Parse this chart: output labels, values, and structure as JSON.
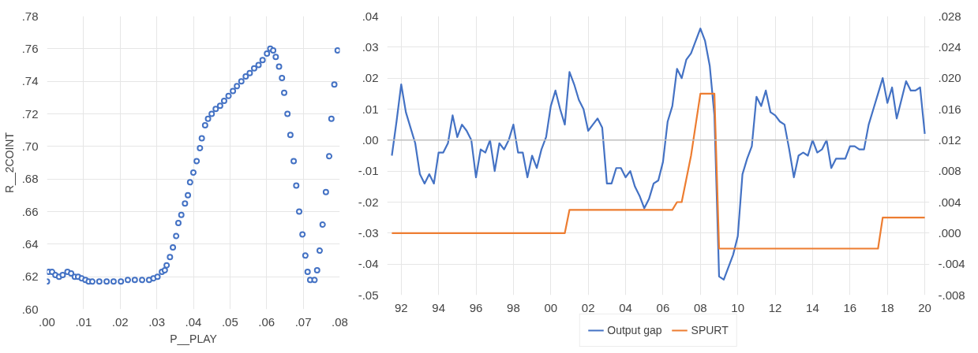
{
  "chart_data": [
    {
      "type": "scatter",
      "xlabel": "P__PLAY",
      "ylabel": "R__2COINT",
      "marker": "circle",
      "grid": true,
      "legend": false,
      "xlim": [
        0,
        0.08
      ],
      "ylim": [
        0.6,
        0.78
      ],
      "xticks": [
        {
          "value": 0,
          "label": ".00"
        },
        {
          "value": 0.01,
          "label": ".01"
        },
        {
          "value": 0.02,
          "label": ".02"
        },
        {
          "value": 0.03,
          "label": ".03"
        },
        {
          "value": 0.04,
          "label": ".04"
        },
        {
          "value": 0.05,
          "label": ".05"
        },
        {
          "value": 0.06,
          "label": ".06"
        },
        {
          "value": 0.07,
          "label": ".07"
        },
        {
          "value": 0.08,
          "label": ".08"
        }
      ],
      "yticks": [
        {
          "value": 0.6,
          "label": ".60"
        },
        {
          "value": 0.62,
          "label": ".62"
        },
        {
          "value": 0.64,
          "label": ".64"
        },
        {
          "value": 0.66,
          "label": ".66"
        },
        {
          "value": 0.68,
          "label": ".68"
        },
        {
          "value": 0.7,
          "label": ".70"
        },
        {
          "value": 0.72,
          "label": ".72"
        },
        {
          "value": 0.74,
          "label": ".74"
        },
        {
          "value": 0.76,
          "label": ".76"
        },
        {
          "value": 0.78,
          "label": ".78"
        }
      ],
      "series": [
        {
          "color": "#4472c4",
          "x": [
            0.0,
            0.0005,
            0.0014,
            0.0023,
            0.0033,
            0.0043,
            0.0056,
            0.0066,
            0.0076,
            0.0085,
            0.0095,
            0.0105,
            0.0114,
            0.0124,
            0.0143,
            0.0163,
            0.0182,
            0.0202,
            0.0221,
            0.024,
            0.026,
            0.0279,
            0.0291,
            0.0302,
            0.0314,
            0.0322,
            0.0327,
            0.0336,
            0.0344,
            0.0353,
            0.0359,
            0.0367,
            0.0377,
            0.0385,
            0.0391,
            0.04,
            0.0409,
            0.0418,
            0.0423,
            0.0432,
            0.044,
            0.045,
            0.0461,
            0.0473,
            0.0484,
            0.0496,
            0.0508,
            0.0519,
            0.0531,
            0.0543,
            0.0554,
            0.0566,
            0.0578,
            0.0589,
            0.0601,
            0.061,
            0.0618,
            0.0625,
            0.0634,
            0.0642,
            0.0648,
            0.0657,
            0.0665,
            0.0674,
            0.0681,
            0.0689,
            0.0698,
            0.0706,
            0.0712,
            0.0719,
            0.0731,
            0.0738,
            0.0745,
            0.0753,
            0.0762,
            0.0771,
            0.0777,
            0.0785,
            0.0794
          ],
          "values": [
            0.617,
            0.623,
            0.623,
            0.621,
            0.62,
            0.621,
            0.623,
            0.622,
            0.62,
            0.62,
            0.619,
            0.618,
            0.617,
            0.617,
            0.617,
            0.617,
            0.617,
            0.617,
            0.618,
            0.618,
            0.618,
            0.618,
            0.619,
            0.62,
            0.623,
            0.624,
            0.627,
            0.632,
            0.638,
            0.645,
            0.653,
            0.658,
            0.665,
            0.67,
            0.678,
            0.684,
            0.691,
            0.699,
            0.705,
            0.713,
            0.717,
            0.72,
            0.723,
            0.725,
            0.728,
            0.731,
            0.734,
            0.737,
            0.74,
            0.743,
            0.745,
            0.748,
            0.75,
            0.753,
            0.757,
            0.76,
            0.759,
            0.755,
            0.749,
            0.742,
            0.733,
            0.72,
            0.707,
            0.691,
            0.676,
            0.66,
            0.646,
            0.633,
            0.623,
            0.618,
            0.618,
            0.624,
            0.636,
            0.652,
            0.672,
            0.694,
            0.717,
            0.738,
            0.759
          ]
        }
      ]
    },
    {
      "type": "line",
      "grid": true,
      "legend": "bottom",
      "marker": "none",
      "line_style": "solid",
      "xlim": [
        1991.25,
        2020.25
      ],
      "ylim": [
        -0.05,
        0.04
      ],
      "y2lim": [
        -0.008,
        0.028
      ],
      "xticks": [
        {
          "value": 1992,
          "label": "92"
        },
        {
          "value": 1994,
          "label": "94"
        },
        {
          "value": 1996,
          "label": "96"
        },
        {
          "value": 1998,
          "label": "98"
        },
        {
          "value": 2000,
          "label": "00"
        },
        {
          "value": 2002,
          "label": "02"
        },
        {
          "value": 2004,
          "label": "04"
        },
        {
          "value": 2006,
          "label": "06"
        },
        {
          "value": 2008,
          "label": "08"
        },
        {
          "value": 2010,
          "label": "10"
        },
        {
          "value": 2012,
          "label": "12"
        },
        {
          "value": 2014,
          "label": "14"
        },
        {
          "value": 2016,
          "label": "16"
        },
        {
          "value": 2018,
          "label": "18"
        },
        {
          "value": 2020,
          "label": "20"
        }
      ],
      "yticks": [
        {
          "value": -0.05,
          "label": "-.05"
        },
        {
          "value": -0.04,
          "label": "-.04"
        },
        {
          "value": -0.03,
          "label": "-.03"
        },
        {
          "value": -0.02,
          "label": "-.02"
        },
        {
          "value": -0.01,
          "label": "-.01"
        },
        {
          "value": 0,
          "label": ".00"
        },
        {
          "value": 0.01,
          "label": ".01"
        },
        {
          "value": 0.02,
          "label": ".02"
        },
        {
          "value": 0.03,
          "label": ".03"
        },
        {
          "value": 0.04,
          "label": ".04"
        }
      ],
      "y2ticks": [
        {
          "value": -0.008,
          "label": "-.008"
        },
        {
          "value": -0.004,
          "label": "-.004"
        },
        {
          "value": 0,
          "label": ".000"
        },
        {
          "value": 0.004,
          "label": ".004"
        },
        {
          "value": 0.008,
          "label": ".008"
        },
        {
          "value": 0.012,
          "label": ".012"
        },
        {
          "value": 0.016,
          "label": ".016"
        },
        {
          "value": 0.02,
          "label": ".020"
        },
        {
          "value": 0.024,
          "label": ".024"
        },
        {
          "value": 0.028,
          "label": ".028"
        }
      ],
      "ref_lines": [
        {
          "axis": "y",
          "value": 0,
          "color": "#bfbfbf"
        }
      ],
      "series": [
        {
          "name": "Output gap",
          "color": "#4472c4",
          "axis": "y",
          "x": [
            1991.5,
            1991.75,
            1992.0,
            1992.25,
            1992.5,
            1992.75,
            1993.0,
            1993.25,
            1993.5,
            1993.75,
            1994.0,
            1994.25,
            1994.5,
            1994.75,
            1995.0,
            1995.25,
            1995.5,
            1995.75,
            1996.0,
            1996.25,
            1996.5,
            1996.75,
            1997.0,
            1997.25,
            1997.5,
            1997.75,
            1998.0,
            1998.25,
            1998.5,
            1998.75,
            1999.0,
            1999.25,
            1999.5,
            1999.75,
            2000.0,
            2000.25,
            2000.5,
            2000.75,
            2001.0,
            2001.25,
            2001.5,
            2001.75,
            2002.0,
            2002.25,
            2002.5,
            2002.75,
            2003.0,
            2003.25,
            2003.5,
            2003.75,
            2004.0,
            2004.25,
            2004.5,
            2004.75,
            2005.0,
            2005.25,
            2005.5,
            2005.75,
            2006.0,
            2006.25,
            2006.5,
            2006.75,
            2007.0,
            2007.25,
            2007.5,
            2007.75,
            2008.0,
            2008.25,
            2008.5,
            2008.75,
            2009.0,
            2009.25,
            2009.5,
            2009.75,
            2010.0,
            2010.25,
            2010.5,
            2010.75,
            2011.0,
            2011.25,
            2011.5,
            2011.75,
            2012.0,
            2012.25,
            2012.5,
            2012.75,
            2013.0,
            2013.25,
            2013.5,
            2013.75,
            2014.0,
            2014.25,
            2014.5,
            2014.75,
            2015.0,
            2015.25,
            2015.5,
            2015.75,
            2016.0,
            2016.25,
            2016.5,
            2016.75,
            2017.0,
            2017.25,
            2017.5,
            2017.75,
            2018.0,
            2018.25,
            2018.5,
            2018.75,
            2019.0,
            2019.25,
            2019.5,
            2019.75,
            2020.0
          ],
          "values": [
            -0.005,
            0.006,
            0.018,
            0.009,
            0.004,
            -0.001,
            -0.011,
            -0.014,
            -0.011,
            -0.014,
            -0.004,
            -0.004,
            -0.001,
            0.008,
            0.001,
            0.005,
            0.003,
            0.0,
            -0.012,
            -0.003,
            -0.004,
            0.0,
            -0.01,
            -0.001,
            -0.003,
            0.0,
            0.005,
            -0.004,
            -0.004,
            -0.012,
            -0.005,
            -0.009,
            -0.003,
            0.001,
            0.011,
            0.016,
            0.01,
            0.005,
            0.022,
            0.018,
            0.013,
            0.01,
            0.003,
            0.005,
            0.007,
            0.004,
            -0.014,
            -0.014,
            -0.009,
            -0.009,
            -0.012,
            -0.01,
            -0.015,
            -0.018,
            -0.022,
            -0.019,
            -0.014,
            -0.013,
            -0.007,
            0.006,
            0.011,
            0.023,
            0.02,
            0.026,
            0.028,
            0.032,
            0.036,
            0.032,
            0.024,
            0.008,
            -0.044,
            -0.045,
            -0.041,
            -0.037,
            -0.031,
            -0.011,
            -0.006,
            -0.002,
            0.014,
            0.011,
            0.016,
            0.009,
            0.008,
            0.006,
            0.005,
            -0.003,
            -0.012,
            -0.005,
            -0.004,
            -0.005,
            0.0,
            -0.004,
            -0.003,
            0.0,
            -0.009,
            -0.006,
            -0.006,
            -0.006,
            -0.002,
            -0.002,
            -0.003,
            -0.003,
            0.005,
            0.01,
            0.015,
            0.02,
            0.012,
            0.017,
            0.007,
            0.013,
            0.019,
            0.016,
            0.016,
            0.017,
            0.002
          ]
        },
        {
          "name": "SPURT",
          "color": "#ed7d31",
          "axis": "y2",
          "x": [
            1991.5,
            2000.75,
            2001.0,
            2006.5,
            2006.75,
            2007.0,
            2007.25,
            2007.5,
            2007.75,
            2008.0,
            2008.75,
            2009.0,
            2009.25,
            2011.25,
            2011.5,
            2017.5,
            2017.75,
            2020.0
          ],
          "values": [
            0.0,
            0.0,
            0.003,
            0.003,
            0.004,
            0.004,
            0.007,
            0.01,
            0.014,
            0.018,
            0.018,
            -0.002,
            -0.002,
            -0.002,
            -0.002,
            -0.002,
            0.002,
            0.002
          ]
        }
      ]
    }
  ]
}
